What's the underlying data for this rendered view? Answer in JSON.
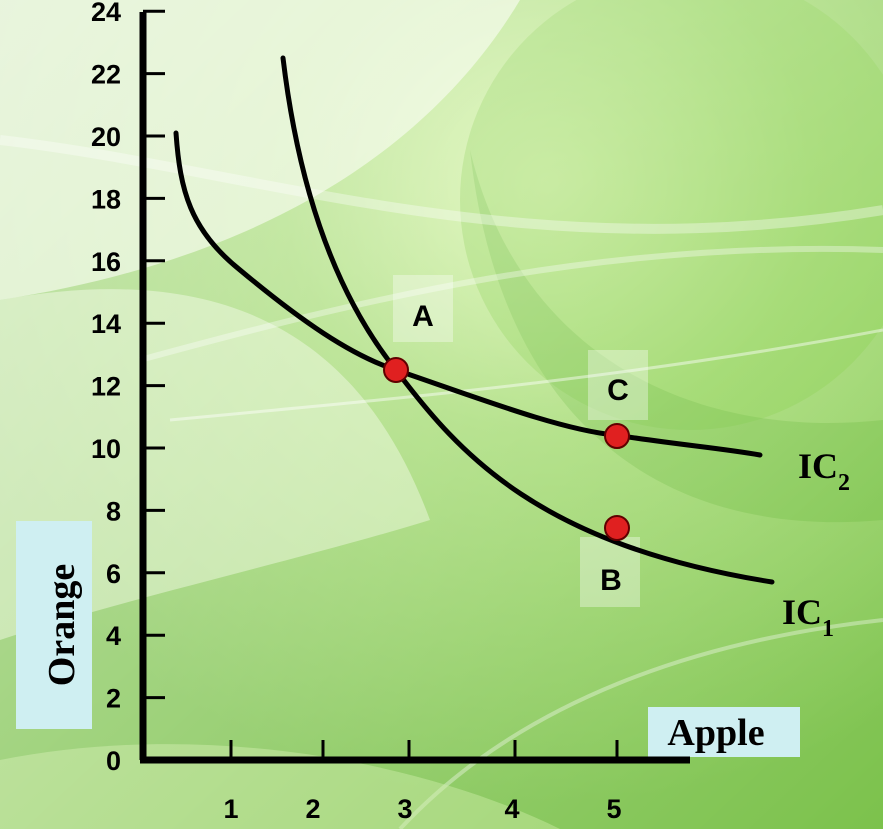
{
  "chart_data": {
    "type": "line",
    "xlabel": "Apple",
    "ylabel": "Orange",
    "xlim": [
      0,
      6
    ],
    "ylim": [
      0,
      24
    ],
    "x_ticks": [
      1,
      2,
      3,
      4,
      5
    ],
    "y_ticks": [
      0,
      2,
      4,
      6,
      8,
      10,
      12,
      14,
      16,
      18,
      20,
      22,
      24
    ],
    "series": [
      {
        "name": "IC",
        "subscript": "1",
        "points": [
          [
            1.6,
            22.5
          ],
          [
            2.0,
            17.2
          ],
          [
            2.5,
            14.0
          ],
          [
            3.0,
            11.8
          ],
          [
            3.5,
            10.0
          ],
          [
            4.0,
            8.7
          ],
          [
            4.5,
            7.6
          ],
          [
            5.0,
            6.9
          ],
          [
            5.5,
            6.3
          ],
          [
            6.0,
            5.9
          ]
        ]
      },
      {
        "name": "IC",
        "subscript": "2",
        "points": [
          [
            0.35,
            20.0
          ],
          [
            0.5,
            17.5
          ],
          [
            1.0,
            15.3
          ],
          [
            1.5,
            14.1
          ],
          [
            2.0,
            13.2
          ],
          [
            2.5,
            12.5
          ],
          [
            3.0,
            11.9
          ],
          [
            3.5,
            11.3
          ],
          [
            4.0,
            10.8
          ],
          [
            4.5,
            10.4
          ],
          [
            5.0,
            10.1
          ],
          [
            5.5,
            9.8
          ],
          [
            6.0,
            9.6
          ]
        ]
      }
    ],
    "points": [
      {
        "label": "A",
        "x": 2.7,
        "y": 12.3
      },
      {
        "label": "C",
        "x": 5.0,
        "y": 10.2
      },
      {
        "label": "B",
        "x": 5.0,
        "y": 7.4
      }
    ],
    "colors": {
      "curve": "#000000",
      "marker": "#e02020",
      "axis": "#000000",
      "label_box": "#cfeff2"
    }
  }
}
